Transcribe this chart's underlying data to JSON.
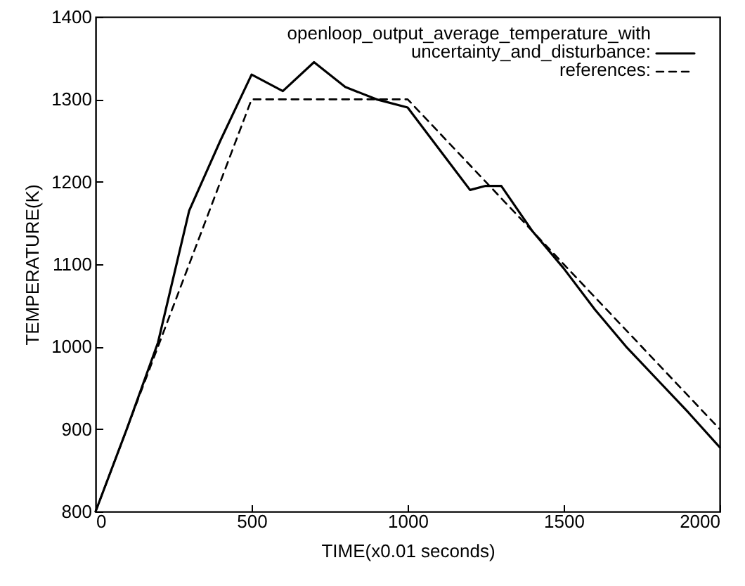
{
  "chart_data": {
    "type": "line",
    "xlabel": "TIME(x0.01 seconds)",
    "ylabel": "TEMPERATURE(K)",
    "xlim": [
      0,
      2000
    ],
    "xticks": [
      0,
      500,
      1000,
      1500,
      2000
    ],
    "ylim": [
      800,
      1400
    ],
    "yticks": [
      800,
      900,
      1000,
      1100,
      1200,
      1300,
      1400
    ],
    "grid": false,
    "legend": "top right",
    "marker": "none",
    "series": [
      {
        "name": "openloop_output_average_temperature_with uncertainty_and_disturbance:",
        "color": "#000000",
        "line_style": "solid",
        "x": [
          0,
          100,
          200,
          300,
          400,
          500,
          600,
          700,
          800,
          900,
          1000,
          1100,
          1200,
          1250,
          1300,
          1400,
          1500,
          1600,
          1700,
          1800,
          1900,
          2000
        ],
        "values": [
          800,
          900,
          1005,
          1165,
          1250,
          1330,
          1310,
          1345,
          1315,
          1300,
          1290,
          1240,
          1190,
          1195,
          1195,
          1140,
          1095,
          1045,
          1000,
          960,
          920,
          878
        ]
      },
      {
        "name": "references:",
        "color": "#000000",
        "line_style": "dashed",
        "x": [
          0,
          200,
          500,
          1000,
          1500,
          2000
        ],
        "values": [
          800,
          1000,
          1300,
          1300,
          1100,
          900
        ]
      }
    ]
  }
}
